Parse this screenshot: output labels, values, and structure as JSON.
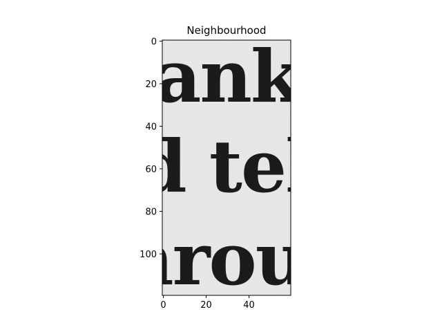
{
  "chart_data": {
    "type": "heatmap",
    "title": "Neighbourhood",
    "xlabel": "",
    "ylabel": "",
    "colormap": "gray",
    "xlim": [
      -0.5,
      59.5
    ],
    "ylim": [
      119.5,
      -0.5
    ],
    "x_ticks": [
      0,
      20,
      40
    ],
    "y_ticks": [
      0,
      20,
      40,
      60,
      80,
      100
    ],
    "x_tick_labels": [
      "0",
      "20",
      "40"
    ],
    "y_tick_labels": [
      "0",
      "20",
      "40",
      "60",
      "80",
      "100"
    ],
    "grid": false,
    "image_text_lines": [
      "ank",
      "d tel",
      "hrou"
    ],
    "colors": {
      "background": "#f0f0f0",
      "ink": "#1b1b1b"
    }
  }
}
